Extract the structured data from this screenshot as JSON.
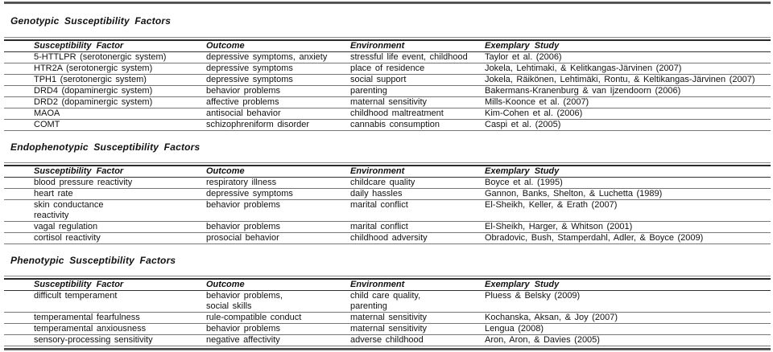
{
  "columns": [
    "Susceptibility Factor",
    "Outcome",
    "Environment",
    "Exemplary Study"
  ],
  "sections": [
    {
      "title": "Genotypic Susceptibility Factors",
      "rows": [
        [
          "5-HTTLPR (serotonergic system)",
          "depressive symptoms, anxiety",
          "stressful life event, childhood",
          "Taylor et al. (2006)"
        ],
        [
          "HTR2A (serotonergic system)",
          "depressive symptoms",
          "place of residence",
          "Jokela, Lehtimaki, & Kelitkangas-Järvinen (2007)"
        ],
        [
          "TPH1 (serotonergic system)",
          "depressive symptoms",
          "social support",
          "Jokela, Räikönen, Lehtimäki, Rontu, & Keltikangas-Järvinen (2007)"
        ],
        [
          "DRD4 (dopaminergic system)",
          "behavior problems",
          "parenting",
          "Bakermans-Kranenburg & van Ijzendoorn (2006)"
        ],
        [
          "DRD2 (dopaminergic system)",
          "affective problems",
          "maternal sensitivity",
          "Mills-Koonce et al. (2007)"
        ],
        [
          "MAOA",
          "antisocial behavior",
          "childhood maltreatment",
          "Kim-Cohen et al. (2006)"
        ],
        [
          "COMT",
          "schizophreniform disorder",
          "cannabis consumption",
          "Caspi et al. (2005)"
        ]
      ]
    },
    {
      "title": "Endophenotypic Susceptibility Factors",
      "rows": [
        [
          "blood pressure reactivity",
          "respiratory illness",
          "childcare quality",
          "Boyce et al. (1995)"
        ],
        [
          "heart rate",
          "depressive symptoms",
          "daily hassles",
          "Gannon, Banks, Shelton, & Luchetta (1989)"
        ],
        [
          "skin conductance\nreactivity",
          "behavior problems",
          "marital conflict",
          "El-Sheikh, Keller, & Erath (2007)"
        ],
        [
          "vagal regulation",
          "behavior problems",
          "marital conflict",
          "El-Sheikh, Harger, & Whitson (2001)"
        ],
        [
          "cortisol reactivity",
          "prosocial behavior",
          "childhood adversity",
          "Obradovic, Bush, Stamperdahl, Adler, & Boyce (2009)"
        ]
      ]
    },
    {
      "title": "Phenotypic Susceptibility Factors",
      "rows": [
        [
          "difficult temperament",
          "behavior problems,\nsocial skills",
          "child care quality,\nparenting",
          "Pluess & Belsky (2009)"
        ],
        [
          "temperamental fearfulness",
          "rule-compatible conduct",
          "maternal sensitivity",
          "Kochanska, Aksan, & Joy (2007)"
        ],
        [
          "temperamental anxiousness",
          "behavior problems",
          "maternal sensitivity",
          "Lengua (2008)"
        ],
        [
          "sensory-processing sensitivity",
          "negative affectivity",
          "adverse childhood",
          "Aron, Aron, & Davies (2005)"
        ]
      ]
    }
  ]
}
